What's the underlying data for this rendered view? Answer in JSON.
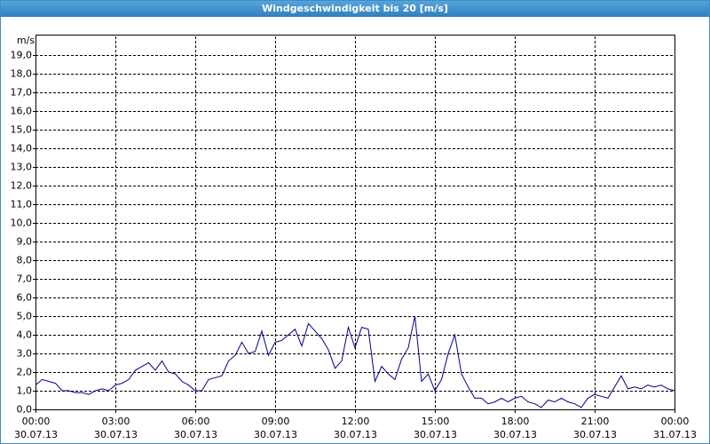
{
  "chart_data": {
    "type": "line",
    "title": "Windgeschwindigkeit bis 20 [m/s]",
    "y_label": "m/s",
    "x": [
      0,
      0.25,
      0.5,
      0.75,
      1,
      1.25,
      1.5,
      1.75,
      2,
      2.25,
      2.5,
      2.75,
      3,
      3.25,
      3.5,
      3.75,
      4,
      4.25,
      4.5,
      4.75,
      5,
      5.25,
      5.5,
      5.75,
      6,
      6.25,
      6.5,
      6.75,
      7,
      7.25,
      7.5,
      7.75,
      8,
      8.25,
      8.5,
      8.75,
      9,
      9.25,
      9.5,
      9.75,
      10,
      10.25,
      10.5,
      10.75,
      11,
      11.25,
      11.5,
      11.75,
      12,
      12.25,
      12.5,
      12.75,
      13,
      13.25,
      13.5,
      13.75,
      14,
      14.25,
      14.5,
      14.75,
      15,
      15.25,
      15.5,
      15.75,
      16,
      16.25,
      16.5,
      16.75,
      17,
      17.25,
      17.5,
      17.75,
      18,
      18.25,
      18.5,
      18.75,
      19,
      19.25,
      19.5,
      19.75,
      20,
      20.25,
      20.5,
      20.75,
      21,
      21.25,
      21.5,
      21.75,
      22,
      22.25,
      22.5,
      22.75,
      23,
      23.25,
      23.5,
      23.75,
      24
    ],
    "series": [
      {
        "color": "#00008b",
        "values": [
          1.3,
          1.6,
          1.5,
          1.4,
          1.0,
          1.0,
          0.9,
          0.9,
          0.8,
          1.0,
          1.1,
          1.0,
          1.3,
          1.4,
          1.6,
          2.1,
          2.3,
          2.5,
          2.1,
          2.6,
          2.0,
          1.9,
          1.5,
          1.3,
          1.0,
          1.0,
          1.6,
          1.7,
          1.8,
          2.6,
          2.9,
          3.6,
          3.0,
          3.1,
          4.2,
          2.9,
          3.6,
          3.7,
          4.0,
          4.3,
          3.4,
          4.6,
          4.2,
          3.8,
          3.2,
          2.2,
          2.6,
          4.4,
          3.3,
          4.4,
          4.3,
          1.5,
          2.3,
          1.9,
          1.6,
          2.7,
          3.3,
          5.0,
          1.5,
          1.9,
          1.0,
          1.6,
          3.0,
          4.0,
          1.9,
          1.2,
          0.6,
          0.6,
          0.3,
          0.4,
          0.6,
          0.4,
          0.6,
          0.7,
          0.4,
          0.3,
          0.1,
          0.5,
          0.4,
          0.6,
          0.4,
          0.3,
          0.1,
          0.6,
          0.8,
          0.7,
          0.6,
          1.2,
          1.8,
          1.1,
          1.2,
          1.1,
          1.3,
          1.2,
          1.3,
          1.1,
          1.0
        ]
      }
    ],
    "xlim": [
      0,
      24
    ],
    "xticks": [
      {
        "value": 0,
        "label": "00:00",
        "date": "30.07.13"
      },
      {
        "value": 3,
        "label": "03:00",
        "date": "30.07.13"
      },
      {
        "value": 6,
        "label": "06:00",
        "date": "30.07.13"
      },
      {
        "value": 9,
        "label": "09:00",
        "date": "30.07.13"
      },
      {
        "value": 12,
        "label": "12:00",
        "date": "30.07.13"
      },
      {
        "value": 15,
        "label": "15:00",
        "date": "30.07.13"
      },
      {
        "value": 18,
        "label": "18:00",
        "date": "30.07.13"
      },
      {
        "value": 21,
        "label": "21:00",
        "date": "30.07.13"
      },
      {
        "value": 24,
        "label": "00:00",
        "date": "31.07.13"
      }
    ],
    "ylim": [
      0,
      20
    ],
    "yticks": [
      {
        "value": 0,
        "label": "0,0"
      },
      {
        "value": 1,
        "label": "1,0"
      },
      {
        "value": 2,
        "label": "2,0"
      },
      {
        "value": 3,
        "label": "3,0"
      },
      {
        "value": 4,
        "label": "4,0"
      },
      {
        "value": 5,
        "label": "5,0"
      },
      {
        "value": 6,
        "label": "6,0"
      },
      {
        "value": 7,
        "label": "7,0"
      },
      {
        "value": 8,
        "label": "8,0"
      },
      {
        "value": 9,
        "label": "9,0"
      },
      {
        "value": 10,
        "label": "10,0"
      },
      {
        "value": 11,
        "label": "11,0"
      },
      {
        "value": 12,
        "label": "12,0"
      },
      {
        "value": 13,
        "label": "13,0"
      },
      {
        "value": 14,
        "label": "14,0"
      },
      {
        "value": 15,
        "label": "15,0"
      },
      {
        "value": 16,
        "label": "16,0"
      },
      {
        "value": 17,
        "label": "17,0"
      },
      {
        "value": 18,
        "label": "18,0"
      },
      {
        "value": 19,
        "label": "19,0"
      }
    ],
    "grid": true
  }
}
